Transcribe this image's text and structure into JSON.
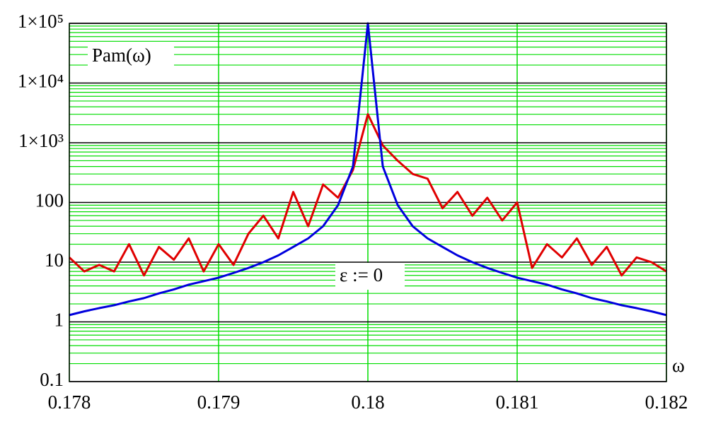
{
  "chart_data": {
    "type": "line",
    "x_label": "ω",
    "annotations": [
      "Pam(ω)",
      "ε := 0"
    ],
    "x": [
      0.178,
      0.1781,
      0.1782,
      0.1783,
      0.1784,
      0.1785,
      0.1786,
      0.1787,
      0.1788,
      0.1789,
      0.179,
      0.1791,
      0.1792,
      0.1793,
      0.1794,
      0.1795,
      0.1796,
      0.1797,
      0.1798,
      0.1799,
      0.18,
      0.1801,
      0.1802,
      0.1803,
      0.1804,
      0.1805,
      0.1806,
      0.1807,
      0.1808,
      0.1809,
      0.181,
      0.1811,
      0.1812,
      0.1813,
      0.1814,
      0.1815,
      0.1816,
      0.1817,
      0.1818,
      0.1819,
      0.182
    ],
    "series": [
      {
        "color": "#e00000",
        "values": [
          12,
          7,
          9,
          7,
          20,
          6,
          18,
          11,
          25,
          7,
          20,
          9,
          30,
          60,
          25,
          150,
          40,
          200,
          120,
          350,
          3000,
          900,
          500,
          300,
          250,
          80,
          150,
          60,
          120,
          50,
          100,
          8,
          20,
          12,
          25,
          9,
          18,
          6,
          12,
          10,
          7
        ]
      },
      {
        "color": "#0000dd",
        "values": [
          1.3,
          1.5,
          1.7,
          1.9,
          2.2,
          2.5,
          3.0,
          3.5,
          4.2,
          4.8,
          5.5,
          6.6,
          8,
          10,
          13,
          18,
          25,
          40,
          90,
          400,
          100000,
          400,
          90,
          40,
          25,
          18,
          13,
          10,
          8,
          6.6,
          5.5,
          4.8,
          4.2,
          3.5,
          3.0,
          2.5,
          2.2,
          1.9,
          1.7,
          1.5,
          1.3
        ]
      }
    ],
    "xlim": [
      0.178,
      0.182
    ],
    "xticks": [
      0.178,
      0.179,
      0.18,
      0.181,
      0.182
    ],
    "ylim": [
      0.1,
      100000
    ],
    "yticks": [
      0.1,
      1,
      10,
      100,
      {
        "value": 1000,
        "label": "1×10³"
      },
      {
        "value": 10000,
        "label": "1×10⁴"
      },
      {
        "value": 100000,
        "label": "1×10⁵"
      }
    ],
    "log_y": true,
    "grid": true,
    "grid_color": "#00dd00"
  }
}
